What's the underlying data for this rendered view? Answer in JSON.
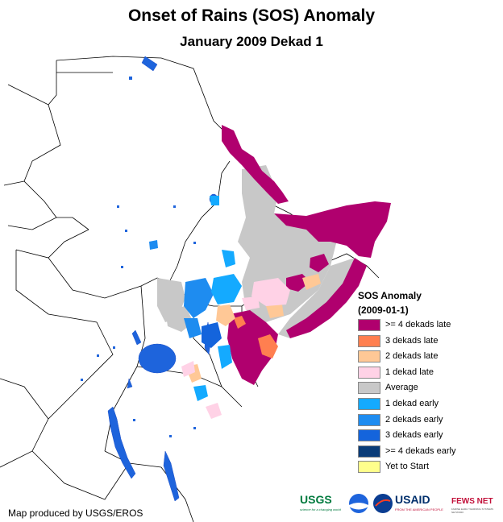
{
  "title": "Onset of Rains (SOS) Anomaly",
  "subtitle": "January 2009 Dekad 1",
  "legend": {
    "title_line1": "SOS Anomaly",
    "title_line2": "(2009-01-1)",
    "items": [
      {
        "label": ">= 4 dekads late",
        "color": "#b0006e"
      },
      {
        "label": "3 dekads late",
        "color": "#ff7f50"
      },
      {
        "label": "2 dekads late",
        "color": "#ffc896"
      },
      {
        "label": "1 dekad late",
        "color": "#ffd2e6"
      },
      {
        "label": "Average",
        "color": "#c8c8c8"
      },
      {
        "label": "1 dekad early",
        "color": "#14aaff"
      },
      {
        "label": "2 dekads early",
        "color": "#1e8cf0"
      },
      {
        "label": "3 dekads early",
        "color": "#1464dc"
      },
      {
        "label": ">= 4 dekads early",
        "color": "#0a3c78"
      },
      {
        "label": "Yet to Start",
        "color": "#ffff8c"
      }
    ]
  },
  "credit": "Map produced by USGS/EROS",
  "logos": {
    "usgs": "USGS",
    "usgs_tag": "science for a changing world",
    "noaa": "NOAA",
    "nasa": "NASA",
    "usaid": "USAID",
    "usaid_tag": "FROM THE AMERICAN PEOPLE",
    "fews": "FEWS NET",
    "fews_tag": "FAMINE EARLY WARNING SYSTEMS NETWORK"
  },
  "colors": {
    "late4": "#b0006e",
    "late3": "#ff7f50",
    "late2": "#ffc896",
    "late1": "#ffd2e6",
    "average": "#c8c8c8",
    "early1": "#14aaff",
    "early2": "#1e8cf0",
    "early3": "#1464dc",
    "lake": "#1e64dc"
  }
}
